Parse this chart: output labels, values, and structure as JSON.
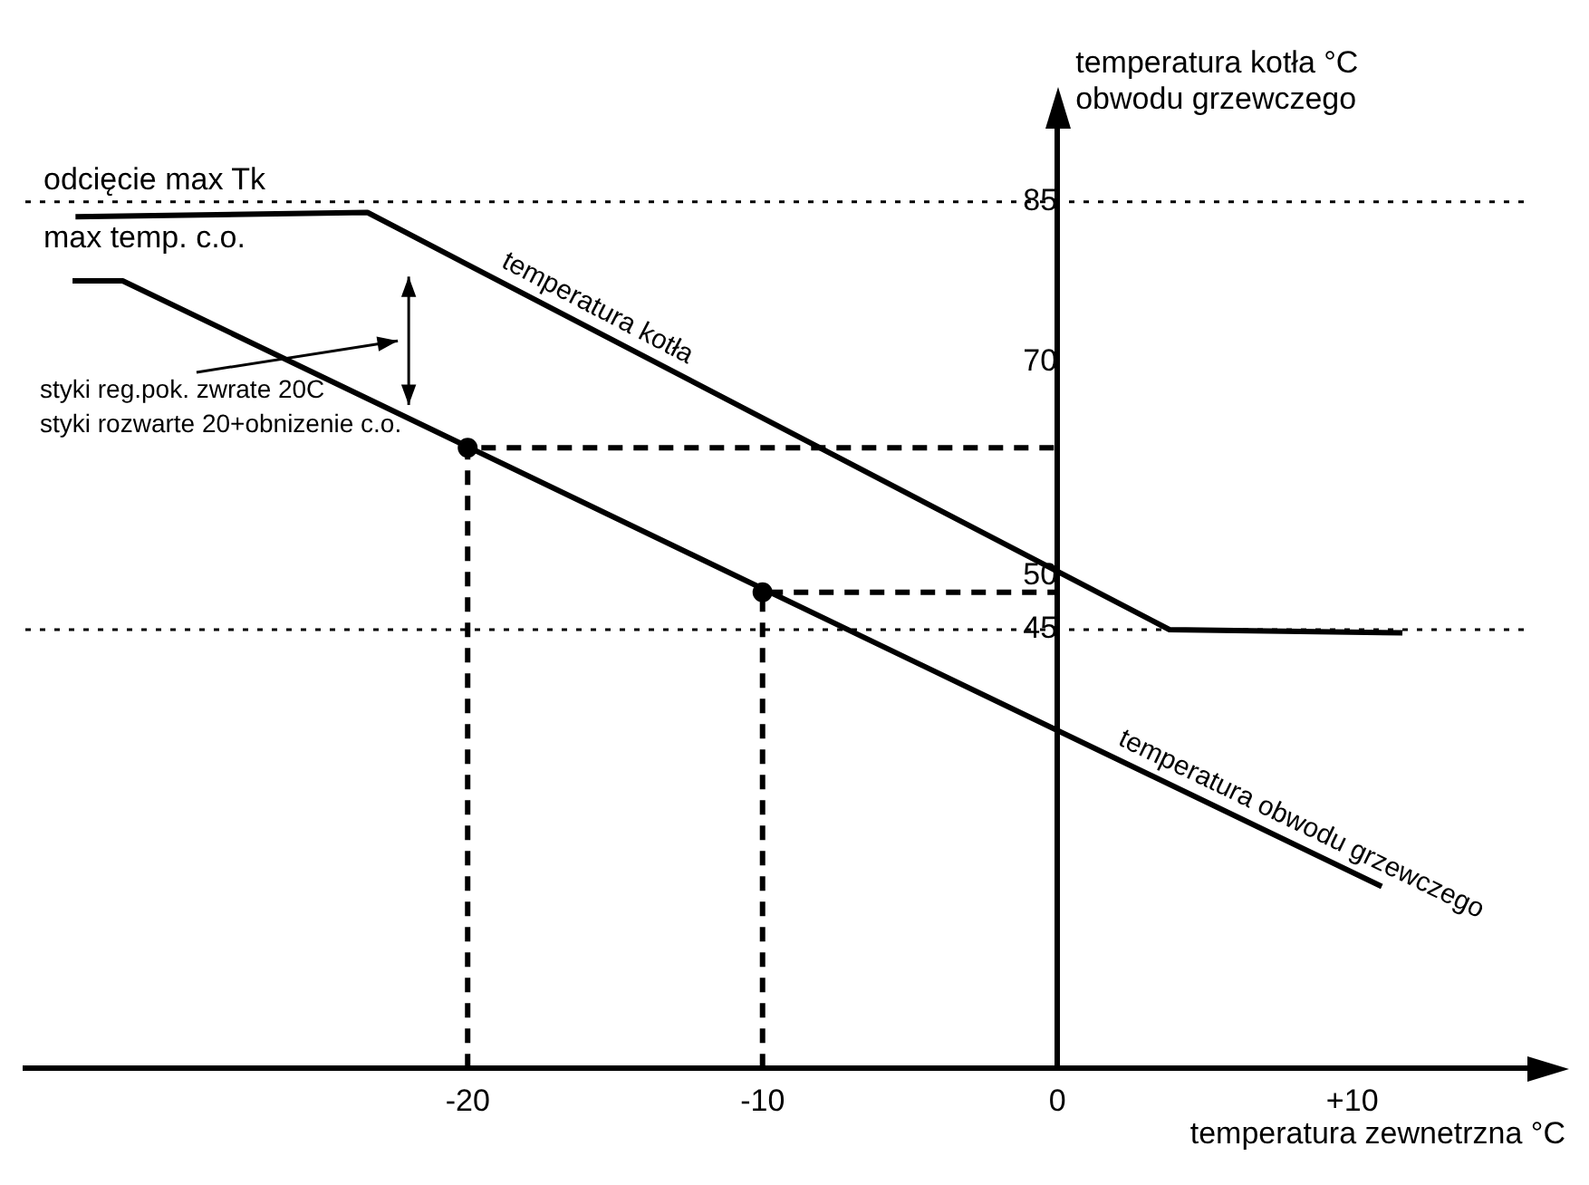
{
  "chart_data": {
    "type": "line",
    "xlabel": "temperatura zewnetrzna °C",
    "ylabel": "temperatura kotła °C\nobwodu grzewczego",
    "xlim": [
      -35,
      16
    ],
    "ylim": [
      4,
      92
    ],
    "xticks": [
      -20,
      -10,
      0,
      {
        "value": 10,
        "label": "+10"
      }
    ],
    "yticks": [
      45,
      50,
      70,
      85
    ],
    "series": [
      {
        "name": "temperatura kotła",
        "color": "#000000",
        "x": [
          -33.3,
          -23.4,
          3.8,
          11.7
        ],
        "values": [
          83.6,
          84,
          45,
          44.7
        ]
      },
      {
        "name": "temperatura obwodu grzewczego",
        "color": "#000000",
        "x": [
          -33.4,
          -31.7,
          11
        ],
        "values": [
          77.6,
          77.6,
          21
        ]
      },
      {
        "color": "#000000",
        "line_style": "dashed",
        "x": [
          -20,
          -20,
          0
        ],
        "values": [
          4,
          62,
          62
        ]
      },
      {
        "color": "#000000",
        "line_style": "dashed",
        "x": [
          -10,
          -10,
          0
        ],
        "values": [
          4,
          48.5,
          48.5
        ]
      },
      {
        "type": "scatter",
        "color": "#000000",
        "marker": "circle",
        "x": [
          -20,
          -10
        ],
        "values": [
          62,
          48.5
        ]
      }
    ],
    "ref_lines": [
      {
        "axis": "y",
        "value": 85,
        "label": "odcięcie max Tk",
        "line_style": "dotted",
        "color": "#000000"
      },
      {
        "axis": "y",
        "value": 45,
        "line_style": "dotted",
        "color": "#000000"
      }
    ],
    "annotations": [
      "max temp. c.o.",
      "styki reg.pok. zwrate 20C",
      "styki rozwarte 20+obnizenie c.o."
    ]
  }
}
